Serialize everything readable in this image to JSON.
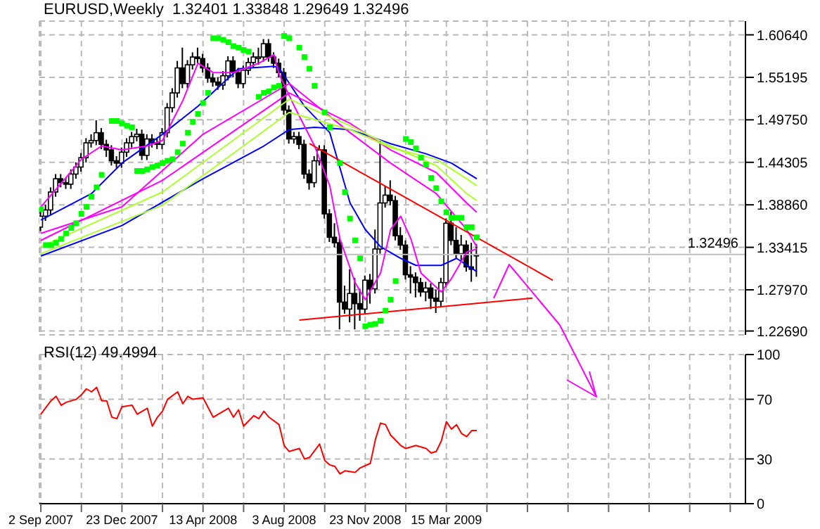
{
  "chart_data": [
    {
      "type": "candlestick",
      "title": "EURUSD,Weekly  1.32401 1.33848 1.29649 1.32496",
      "x": [
        "2007-09-02",
        "2007-09-09",
        "2007-09-16",
        "2007-09-23",
        "2007-09-30",
        "2007-10-07",
        "2007-10-14",
        "2007-10-21",
        "2007-10-28",
        "2007-11-04",
        "2007-11-11",
        "2007-11-18",
        "2007-11-25",
        "2007-12-02",
        "2007-12-09",
        "2007-12-16",
        "2007-12-23",
        "2007-12-30",
        "2008-01-06",
        "2008-01-13",
        "2008-01-20",
        "2008-01-27",
        "2008-02-03",
        "2008-02-10",
        "2008-02-17",
        "2008-02-24",
        "2008-03-02",
        "2008-03-09",
        "2008-03-16",
        "2008-03-23",
        "2008-03-30",
        "2008-04-06",
        "2008-04-13",
        "2008-04-20",
        "2008-04-27",
        "2008-05-04",
        "2008-05-11",
        "2008-05-18",
        "2008-05-25",
        "2008-06-01",
        "2008-06-08",
        "2008-06-15",
        "2008-06-22",
        "2008-06-29",
        "2008-07-06",
        "2008-07-13",
        "2008-07-20",
        "2008-07-27",
        "2008-08-03",
        "2008-08-10",
        "2008-08-17",
        "2008-08-24",
        "2008-08-31",
        "2008-09-07",
        "2008-09-14",
        "2008-09-21",
        "2008-09-28",
        "2008-10-05",
        "2008-10-12",
        "2008-10-19",
        "2008-10-26",
        "2008-11-02",
        "2008-11-09",
        "2008-11-16",
        "2008-11-23",
        "2008-11-30",
        "2008-12-07",
        "2008-12-14",
        "2008-12-21",
        "2008-12-28",
        "2009-01-04",
        "2009-01-11",
        "2009-01-18",
        "2009-01-25",
        "2009-02-01",
        "2009-02-08",
        "2009-02-15",
        "2009-02-22",
        "2009-03-01",
        "2009-03-08",
        "2009-03-15",
        "2009-03-22",
        "2009-03-29",
        "2009-04-05",
        "2009-04-12",
        "2009-04-19",
        "2009-04-26"
      ],
      "ohlc": [
        [
          1.36,
          1.38,
          1.355,
          1.374
        ],
        [
          1.374,
          1.389,
          1.368,
          1.382
        ],
        [
          1.382,
          1.411,
          1.376,
          1.405
        ],
        [
          1.405,
          1.428,
          1.399,
          1.422
        ],
        [
          1.422,
          1.428,
          1.411,
          1.417
        ],
        [
          1.417,
          1.423,
          1.409,
          1.415
        ],
        [
          1.415,
          1.434,
          1.409,
          1.428
        ],
        [
          1.428,
          1.443,
          1.422,
          1.437
        ],
        [
          1.437,
          1.455,
          1.431,
          1.449
        ],
        [
          1.449,
          1.474,
          1.443,
          1.468
        ],
        [
          1.468,
          1.479,
          1.462,
          1.471
        ],
        [
          1.471,
          1.497,
          1.465,
          1.481
        ],
        [
          1.481,
          1.487,
          1.46,
          1.466
        ],
        [
          1.466,
          1.472,
          1.45,
          1.459
        ],
        [
          1.459,
          1.465,
          1.439,
          1.445
        ],
        [
          1.445,
          1.451,
          1.436,
          1.442
        ],
        [
          1.442,
          1.462,
          1.436,
          1.456
        ],
        [
          1.456,
          1.474,
          1.45,
          1.468
        ],
        [
          1.468,
          1.482,
          1.462,
          1.476
        ],
        [
          1.476,
          1.486,
          1.47,
          1.479
        ],
        [
          1.479,
          1.485,
          1.446,
          1.452
        ],
        [
          1.452,
          1.479,
          1.446,
          1.473
        ],
        [
          1.473,
          1.479,
          1.462,
          1.468
        ],
        [
          1.468,
          1.474,
          1.46,
          1.466
        ],
        [
          1.466,
          1.487,
          1.46,
          1.481
        ],
        [
          1.481,
          1.519,
          1.475,
          1.513
        ],
        [
          1.513,
          1.538,
          1.507,
          1.532
        ],
        [
          1.532,
          1.573,
          1.526,
          1.564
        ],
        [
          1.564,
          1.59,
          1.538,
          1.544
        ],
        [
          1.544,
          1.574,
          1.538,
          1.568
        ],
        [
          1.568,
          1.584,
          1.562,
          1.578
        ],
        [
          1.578,
          1.59,
          1.57,
          1.576
        ],
        [
          1.576,
          1.582,
          1.558,
          1.564
        ],
        [
          1.564,
          1.57,
          1.545,
          1.551
        ],
        [
          1.551,
          1.557,
          1.54,
          1.546
        ],
        [
          1.546,
          1.552,
          1.536,
          1.542
        ],
        [
          1.542,
          1.56,
          1.536,
          1.554
        ],
        [
          1.554,
          1.579,
          1.548,
          1.573
        ],
        [
          1.573,
          1.579,
          1.552,
          1.558
        ],
        [
          1.558,
          1.564,
          1.538,
          1.544
        ],
        [
          1.544,
          1.567,
          1.538,
          1.561
        ],
        [
          1.561,
          1.577,
          1.555,
          1.571
        ],
        [
          1.571,
          1.584,
          1.565,
          1.578
        ],
        [
          1.578,
          1.59,
          1.568,
          1.578
        ],
        [
          1.578,
          1.601,
          1.572,
          1.595
        ],
        [
          1.595,
          1.601,
          1.572,
          1.578
        ],
        [
          1.578,
          1.584,
          1.564,
          1.57
        ],
        [
          1.57,
          1.576,
          1.552,
          1.558
        ],
        [
          1.558,
          1.564,
          1.504,
          1.51
        ],
        [
          1.51,
          1.516,
          1.467,
          1.473
        ],
        [
          1.473,
          1.482,
          1.467,
          1.476
        ],
        [
          1.476,
          1.482,
          1.46,
          1.466
        ],
        [
          1.466,
          1.472,
          1.422,
          1.428
        ],
        [
          1.428,
          1.434,
          1.408,
          1.417
        ],
        [
          1.417,
          1.451,
          1.411,
          1.445
        ],
        [
          1.445,
          1.465,
          1.439,
          1.459
        ],
        [
          1.459,
          1.465,
          1.371,
          1.377
        ],
        [
          1.377,
          1.383,
          1.341,
          1.347
        ],
        [
          1.347,
          1.365,
          1.334,
          1.34
        ],
        [
          1.34,
          1.346,
          1.229,
          1.264
        ],
        [
          1.264,
          1.285,
          1.249,
          1.255
        ],
        [
          1.255,
          1.306,
          1.238,
          1.275
        ],
        [
          1.275,
          1.295,
          1.229,
          1.262
        ],
        [
          1.262,
          1.281,
          1.24,
          1.255
        ],
        [
          1.255,
          1.298,
          1.249,
          1.292
        ],
        [
          1.292,
          1.3,
          1.262,
          1.281
        ],
        [
          1.281,
          1.357,
          1.275,
          1.332
        ],
        [
          1.332,
          1.47,
          1.326,
          1.391
        ],
        [
          1.391,
          1.413,
          1.385,
          1.401
        ],
        [
          1.401,
          1.42,
          1.388,
          1.394
        ],
        [
          1.394,
          1.4,
          1.343,
          1.349
        ],
        [
          1.349,
          1.36,
          1.331,
          1.337
        ],
        [
          1.337,
          1.343,
          1.293,
          1.299
        ],
        [
          1.299,
          1.31,
          1.275,
          1.296
        ],
        [
          1.296,
          1.302,
          1.27,
          1.289
        ],
        [
          1.289,
          1.295,
          1.271,
          1.277
        ],
        [
          1.277,
          1.29,
          1.265,
          1.282
        ],
        [
          1.282,
          1.288,
          1.255,
          1.269
        ],
        [
          1.269,
          1.28,
          1.25,
          1.265
        ],
        [
          1.265,
          1.295,
          1.259,
          1.289
        ],
        [
          1.289,
          1.371,
          1.283,
          1.365
        ],
        [
          1.365,
          1.38,
          1.337,
          1.343
        ],
        [
          1.343,
          1.36,
          1.32,
          1.326
        ],
        [
          1.326,
          1.35,
          1.315,
          1.337
        ],
        [
          1.337,
          1.343,
          1.303,
          1.309
        ],
        [
          1.309,
          1.34,
          1.29,
          1.306
        ],
        [
          1.32401,
          1.33848,
          1.29649,
          1.32496
        ]
      ],
      "series": [
        {
          "type": "line",
          "color": "#0000ff",
          "x": [
            "2007-09-02",
            "2007-11-11",
            "2007-12-23",
            "2008-02-17",
            "2008-04-06",
            "2008-05-04",
            "2008-06-01",
            "2008-07-20",
            "2008-07-27",
            "2008-08-31",
            "2008-10-05",
            "2008-11-02",
            "2008-11-23",
            "2008-12-14",
            "2009-01-11",
            "2009-02-01",
            "2009-03-08",
            "2009-03-29",
            "2009-04-26"
          ],
          "values": [
            1.369,
            1.403,
            1.442,
            1.479,
            1.515,
            1.539,
            1.563,
            1.566,
            1.564,
            1.515,
            1.481,
            1.391,
            1.357,
            1.335,
            1.32,
            1.311,
            1.311,
            1.32,
            1.303
          ]
        },
        {
          "type": "line",
          "color": "#0000ff",
          "x": [
            "2007-09-02",
            "2007-12-23",
            "2008-04-13",
            "2008-07-06",
            "2008-08-10",
            "2008-09-14",
            "2008-11-02",
            "2008-12-28",
            "2009-02-15",
            "2009-03-22",
            "2009-04-26"
          ],
          "values": [
            1.323,
            1.362,
            1.422,
            1.464,
            1.485,
            1.488,
            1.485,
            1.467,
            1.454,
            1.442,
            1.422
          ]
        },
        {
          "type": "line",
          "color": "#ff00ff",
          "x": [
            "2007-09-02",
            "2007-09-30",
            "2007-10-28",
            "2007-11-25",
            "2007-12-23",
            "2008-01-27",
            "2008-02-17",
            "2008-03-16",
            "2008-04-06",
            "2008-04-27",
            "2008-05-25",
            "2008-06-29",
            "2008-07-20",
            "2008-07-27",
            "2008-08-17",
            "2008-09-14",
            "2008-10-05",
            "2008-10-19",
            "2008-11-09",
            "2008-11-23",
            "2008-12-14",
            "2008-12-28",
            "2009-01-11",
            "2009-01-25",
            "2009-02-08",
            "2009-03-08",
            "2009-03-22",
            "2009-04-12",
            "2009-04-26"
          ],
          "values": [
            1.386,
            1.416,
            1.447,
            1.464,
            1.459,
            1.464,
            1.471,
            1.522,
            1.57,
            1.558,
            1.558,
            1.57,
            1.581,
            1.556,
            1.515,
            1.464,
            1.413,
            1.345,
            1.289,
            1.267,
            1.301,
            1.357,
            1.374,
            1.345,
            1.301,
            1.277,
            1.294,
            1.328,
            1.332
          ]
        },
        {
          "type": "line",
          "color": "#ff00ff",
          "x": [
            "2007-09-02",
            "2007-12-23",
            "2008-04-13",
            "2008-08-10",
            "2008-11-02",
            "2008-12-28",
            "2009-03-01",
            "2009-04-12",
            "2009-04-26"
          ],
          "values": [
            1.352,
            1.386,
            1.479,
            1.544,
            1.481,
            1.442,
            1.403,
            1.357,
            1.335
          ]
        },
        {
          "type": "line",
          "color": "#ff00ff",
          "x": [
            "2007-09-02",
            "2008-02-17",
            "2008-08-10",
            "2008-11-02",
            "2008-12-28",
            "2009-03-01",
            "2009-04-12",
            "2009-04-26"
          ],
          "values": [
            1.343,
            1.42,
            1.532,
            1.493,
            1.459,
            1.43,
            1.391,
            1.379
          ]
        },
        {
          "type": "line",
          "color": "#adff2f",
          "x": [
            "2007-09-02",
            "2008-02-17",
            "2008-08-10",
            "2008-11-02",
            "2008-12-28",
            "2009-03-01",
            "2009-04-12",
            "2009-04-26"
          ],
          "values": [
            1.335,
            1.405,
            1.524,
            1.49,
            1.464,
            1.439,
            1.403,
            1.394
          ]
        },
        {
          "type": "line",
          "color": "#adff2f",
          "x": [
            "2007-09-02",
            "2008-02-17",
            "2008-08-10",
            "2008-11-02",
            "2008-12-28",
            "2009-03-01",
            "2009-04-12",
            "2009-04-26"
          ],
          "values": [
            1.326,
            1.388,
            1.507,
            1.485,
            1.462,
            1.447,
            1.422,
            1.413
          ]
        },
        {
          "type": "line",
          "color": "#ff0000",
          "x": [
            "2008-09-07",
            "2009-08-09"
          ],
          "values": [
            1.467,
            1.292
          ]
        },
        {
          "type": "line",
          "color": "#ff0000",
          "x": [
            "2008-08-24",
            "2009-07-12"
          ],
          "values": [
            1.241,
            1.269
          ]
        },
        {
          "type": "scatter",
          "marker": "square",
          "color": "#00ff00",
          "x": [
            "2007-09-02",
            "2007-09-09",
            "2007-09-16",
            "2007-09-23",
            "2007-09-30",
            "2007-10-07",
            "2007-10-14",
            "2007-10-21",
            "2007-10-28",
            "2007-11-04",
            "2007-11-11",
            "2007-11-18",
            "2007-11-25",
            "2007-12-09",
            "2007-12-16",
            "2007-12-23",
            "2007-12-30",
            "2008-01-06",
            "2008-01-13",
            "2008-01-20",
            "2008-01-27",
            "2008-02-03",
            "2008-02-10",
            "2008-02-17",
            "2008-02-24",
            "2008-03-02",
            "2008-03-09",
            "2008-03-16",
            "2008-03-23",
            "2008-03-30",
            "2008-04-06",
            "2008-04-13",
            "2008-04-20",
            "2008-04-27",
            "2008-05-04",
            "2008-05-11",
            "2008-05-18",
            "2008-05-25",
            "2008-06-01",
            "2008-06-08",
            "2008-06-15",
            "2008-06-29",
            "2008-07-06",
            "2008-07-13",
            "2008-07-20",
            "2008-07-27",
            "2008-08-03",
            "2008-08-10",
            "2008-08-24",
            "2008-08-31",
            "2008-09-07",
            "2008-09-14",
            "2008-09-28",
            "2008-10-05",
            "2008-10-19",
            "2008-10-26",
            "2008-11-02",
            "2008-11-09",
            "2008-11-16",
            "2008-11-23",
            "2008-11-30",
            "2008-12-07",
            "2008-12-14",
            "2008-12-21",
            "2008-12-28",
            "2009-01-04",
            "2009-01-18",
            "2009-01-25",
            "2009-02-01",
            "2009-02-08",
            "2009-02-15",
            "2009-02-22",
            "2009-03-01",
            "2009-03-08",
            "2009-03-15",
            "2009-03-22",
            "2009-03-29",
            "2009-04-05",
            "2009-04-12",
            "2009-04-19",
            "2009-04-26"
          ],
          "values": [
            1.383,
            1.337,
            1.337,
            1.34,
            1.345,
            1.352,
            1.359,
            1.365,
            1.377,
            1.386,
            1.399,
            1.411,
            1.427,
            1.496,
            1.496,
            1.493,
            1.49,
            1.488,
            1.432,
            1.432,
            1.434,
            1.437,
            1.439,
            1.442,
            1.445,
            1.447,
            1.456,
            1.467,
            1.481,
            1.495,
            1.505,
            1.519,
            1.532,
            1.602,
            1.602,
            1.6,
            1.597,
            1.592,
            1.59,
            1.587,
            1.585,
            1.527,
            1.532,
            1.534,
            1.539,
            1.541,
            1.605,
            1.602,
            1.59,
            1.578,
            1.563,
            1.541,
            1.507,
            1.488,
            1.442,
            1.405,
            1.371,
            1.343,
            1.32,
            1.233,
            1.235,
            1.236,
            1.24,
            1.253,
            1.267,
            1.291,
            1.473,
            1.469,
            1.461,
            1.449,
            1.44,
            1.423,
            1.41,
            1.393,
            1.379,
            1.372,
            1.372,
            1.372,
            1.36,
            1.36,
            1.347
          ]
        }
      ],
      "ylim": [
        1.222,
        1.624
      ],
      "yticks": [
        {
          "value": 1.2269,
          "label": "1.22690"
        },
        {
          "value": 1.2797,
          "label": "1.27970"
        },
        {
          "value": 1.33415,
          "label": "1.33415"
        },
        {
          "value": 1.3886,
          "label": "1.38860"
        },
        {
          "value": 1.44305,
          "label": "1.44305"
        },
        {
          "value": 1.4975,
          "label": "1.49750"
        },
        {
          "value": 1.55195,
          "label": "1.55195"
        },
        {
          "value": 1.6064,
          "label": "1.60640"
        }
      ],
      "xlim": [
        "2007-08-31",
        "2010-05-02"
      ],
      "xticks": [
        {
          "value": "2007-09-02",
          "label": null
        },
        {
          "value": "2007-10-28",
          "label": null
        },
        {
          "value": "2007-12-23",
          "label": null
        },
        {
          "value": "2008-02-17",
          "label": null
        },
        {
          "value": "2008-04-13",
          "label": null
        },
        {
          "value": "2008-06-08",
          "label": null
        },
        {
          "value": "2008-08-03",
          "label": null
        },
        {
          "value": "2008-09-28",
          "label": null
        },
        {
          "value": "2008-11-23",
          "label": null
        },
        {
          "value": "2009-01-18",
          "label": null
        },
        {
          "value": "2009-03-15",
          "label": null
        },
        {
          "value": "2009-05-10",
          "label": null
        },
        {
          "value": "2009-07-05",
          "label": null
        },
        {
          "value": "2009-08-30",
          "label": null
        },
        {
          "value": "2009-10-25",
          "label": null
        },
        {
          "value": "2009-12-20",
          "label": null
        },
        {
          "value": "2010-02-14",
          "label": null
        },
        {
          "value": "2010-04-11",
          "label": null
        }
      ],
      "ref_lines": [
        {
          "axis": "y",
          "value": 1.32496,
          "label": "1.32496",
          "color": "#c0c0c0"
        }
      ],
      "grid": true,
      "tick_labels": "y"
    },
    {
      "type": "line",
      "title": "RSI(12) 49.4994",
      "series": [
        {
          "color": "#ff0000",
          "x": [
            "2007-09-02",
            "2007-09-16",
            "2007-09-23",
            "2007-09-30",
            "2007-10-07",
            "2007-10-21",
            "2007-10-28",
            "2007-11-04",
            "2007-11-11",
            "2007-11-18",
            "2007-11-25",
            "2007-12-02",
            "2007-12-09",
            "2007-12-16",
            "2007-12-23",
            "2008-01-06",
            "2008-01-13",
            "2008-01-27",
            "2008-02-03",
            "2008-02-10",
            "2008-02-17",
            "2008-02-24",
            "2008-03-09",
            "2008-03-16",
            "2008-03-23",
            "2008-03-30",
            "2008-04-13",
            "2008-04-27",
            "2008-05-04",
            "2008-05-18",
            "2008-05-25",
            "2008-06-01",
            "2008-06-08",
            "2008-06-22",
            "2008-06-29",
            "2008-07-06",
            "2008-07-13",
            "2008-07-27",
            "2008-08-03",
            "2008-08-10",
            "2008-08-24",
            "2008-08-31",
            "2008-09-07",
            "2008-09-21",
            "2008-09-28",
            "2008-10-05",
            "2008-10-12",
            "2008-10-19",
            "2008-10-26",
            "2008-11-09",
            "2008-11-16",
            "2008-11-30",
            "2008-12-07",
            "2008-12-14",
            "2008-12-21",
            "2008-12-28",
            "2009-01-11",
            "2009-01-18",
            "2009-02-01",
            "2009-02-15",
            "2009-02-22",
            "2009-03-01",
            "2009-03-08",
            "2009-03-15",
            "2009-03-22",
            "2009-03-29",
            "2009-04-05",
            "2009-04-12",
            "2009-04-19",
            "2009-04-26"
          ],
          "values": [
            60,
            69,
            72,
            66,
            68,
            70,
            73,
            77,
            75,
            78,
            69,
            69,
            58,
            57,
            65,
            66,
            60,
            64,
            52,
            58,
            62,
            70,
            75,
            67,
            72,
            70,
            71,
            58,
            60,
            64,
            58,
            63,
            52,
            59,
            57,
            62,
            58,
            53,
            39,
            35,
            37,
            30,
            31,
            40,
            29,
            26,
            25,
            20,
            22,
            21,
            24,
            27,
            43,
            54,
            53,
            46,
            39,
            37,
            39,
            37,
            34,
            35,
            42,
            55,
            50,
            53,
            47,
            45,
            49,
            49
          ]
        }
      ],
      "ylim": [
        0,
        100
      ],
      "yticks": [
        0,
        30,
        70,
        100
      ],
      "xlim": [
        "2007-08-31",
        "2010-05-02"
      ],
      "xticks": [
        {
          "value": "2007-09-02",
          "label": "2 Sep 2007"
        },
        {
          "value": "2007-10-28",
          "label": null
        },
        {
          "value": "2007-12-23",
          "label": "23 Dec 2007"
        },
        {
          "value": "2008-02-17",
          "label": null
        },
        {
          "value": "2008-04-13",
          "label": "13 Apr 2008"
        },
        {
          "value": "2008-06-08",
          "label": null
        },
        {
          "value": "2008-08-03",
          "label": "3 Aug 2008"
        },
        {
          "value": "2008-09-28",
          "label": null
        },
        {
          "value": "2008-11-23",
          "label": "23 Nov 2008"
        },
        {
          "value": "2009-01-18",
          "label": null
        },
        {
          "value": "2009-03-15",
          "label": "15 Mar 2009"
        },
        {
          "value": "2009-05-10",
          "label": null
        },
        {
          "value": "2009-07-05",
          "label": null
        },
        {
          "value": "2009-08-30",
          "label": null
        },
        {
          "value": "2009-10-25",
          "label": null
        },
        {
          "value": "2009-12-20",
          "label": null
        },
        {
          "value": "2010-02-14",
          "label": null
        },
        {
          "value": "2010-04-11",
          "label": null
        }
      ],
      "grid": true
    }
  ]
}
